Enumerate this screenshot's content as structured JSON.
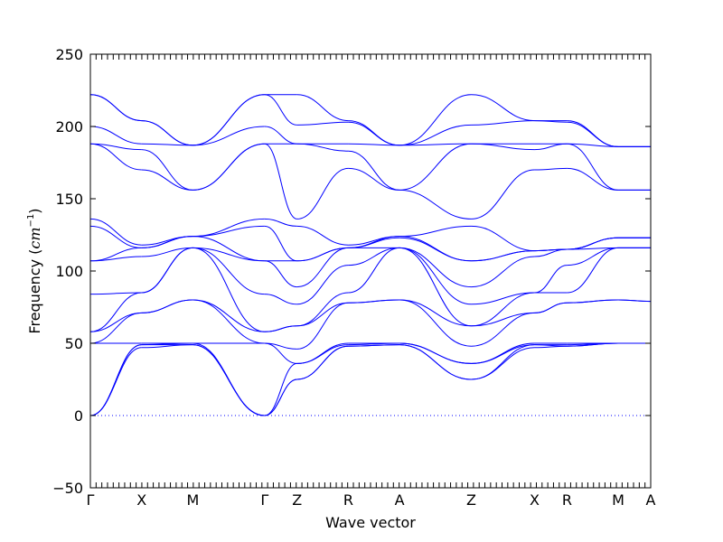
{
  "chart_data": {
    "type": "line",
    "title": "",
    "xlabel": "Wave vector",
    "ylabel": "Frequency (cm⁻¹)",
    "ylabel_main": "Frequency (",
    "ylabel_unit": "cm",
    "ylabel_exp": "−1",
    "ylabel_close": ")",
    "ylim": [
      -50,
      250
    ],
    "yticks": [
      -50,
      0,
      50,
      100,
      150,
      200,
      250
    ],
    "grid": false,
    "legend": "none",
    "zero_line": {
      "y": 0,
      "style": "dotted",
      "color": "#0000ff"
    },
    "line_color": "#0000ff",
    "xlim": [
      0,
      15.5
    ],
    "high_symmetry_points": [
      {
        "label": "Γ",
        "x": 0.0
      },
      {
        "label": "X",
        "x": 1.5
      },
      {
        "label": "M",
        "x": 3.0
      },
      {
        "label": "Γ",
        "x": 5.1
      },
      {
        "label": "Z",
        "x": 6.05
      },
      {
        "label": "R",
        "x": 7.55
      },
      {
        "label": "A",
        "x": 9.05
      },
      {
        "label": "Z",
        "x": 11.15
      },
      {
        "label": "X",
        "x": 13.0
      },
      {
        "label": "R",
        "x": 13.95
      },
      {
        "label": "M",
        "x": 15.45
      },
      {
        "label": "A",
        "x": 16.4
      }
    ],
    "segments": [
      {
        "from": "Γ",
        "to": "X",
        "x0": 0.0,
        "x1": 1.5,
        "start": [
          0,
          0,
          0,
          50,
          50,
          58,
          58,
          84,
          107,
          107,
          131,
          136,
          188,
          188,
          200,
          222,
          222
        ],
        "end": [
          47,
          49,
          49,
          50,
          71,
          71,
          85,
          85,
          110,
          116,
          116,
          118,
          170,
          184,
          188,
          204,
          204
        ]
      },
      {
        "from": "X",
        "to": "M",
        "x0": 1.5,
        "x1": 3.0,
        "start": [
          47,
          49,
          49,
          50,
          71,
          71,
          85,
          85,
          110,
          116,
          116,
          118,
          170,
          184,
          188,
          204,
          204
        ],
        "end": [
          49,
          49,
          50,
          50,
          80,
          80,
          116,
          116,
          116,
          124,
          124,
          124,
          156,
          156,
          187,
          187,
          187
        ]
      },
      {
        "from": "M",
        "to": "Γ",
        "x0": 3.0,
        "x1": 5.1,
        "start": [
          49,
          49,
          50,
          50,
          80,
          80,
          116,
          116,
          116,
          124,
          124,
          124,
          156,
          156,
          187,
          187,
          187
        ],
        "end": [
          0,
          0,
          0,
          50,
          50,
          58,
          58,
          84,
          107,
          107,
          131,
          136,
          188,
          188,
          200,
          222,
          222
        ]
      },
      {
        "from": "Γ",
        "to": "Z",
        "x0": 5.1,
        "x1": 6.05,
        "start": [
          0,
          0,
          0,
          50,
          50,
          58,
          58,
          84,
          107,
          107,
          131,
          136,
          188,
          188,
          200,
          222,
          222
        ],
        "end": [
          25,
          25,
          36,
          36,
          46,
          62,
          62,
          77,
          89,
          107,
          107,
          131,
          136,
          188,
          188,
          201,
          222
        ]
      },
      {
        "from": "Z",
        "to": "R",
        "x0": 6.05,
        "x1": 7.55,
        "start": [
          25,
          25,
          36,
          36,
          46,
          62,
          62,
          77,
          89,
          107,
          107,
          131,
          136,
          188,
          188,
          201,
          222
        ],
        "end": [
          48,
          48,
          49,
          50,
          78,
          78,
          85,
          104,
          116,
          116,
          116,
          118,
          171,
          183,
          188,
          203,
          204
        ]
      },
      {
        "from": "R",
        "to": "A",
        "x0": 7.55,
        "x1": 9.05,
        "start": [
          48,
          48,
          49,
          50,
          78,
          78,
          85,
          104,
          116,
          116,
          116,
          118,
          171,
          183,
          188,
          203,
          204
        ],
        "end": [
          49,
          49,
          50,
          50,
          80,
          80,
          116,
          116,
          116,
          123,
          124,
          124,
          156,
          156,
          187,
          187,
          187
        ]
      },
      {
        "from": "A",
        "to": "Z",
        "x0": 9.05,
        "x1": 11.15,
        "start": [
          49,
          49,
          50,
          50,
          80,
          80,
          116,
          116,
          116,
          123,
          124,
          124,
          156,
          156,
          187,
          187,
          187
        ],
        "end": [
          25,
          25,
          36,
          36,
          48,
          62,
          62,
          77,
          89,
          107,
          107,
          131,
          136,
          188,
          188,
          201,
          222
        ]
      },
      {
        "from": "Z",
        "to": "X",
        "x0": 11.15,
        "x1": 13.0,
        "start": [
          25,
          25,
          36,
          36,
          48,
          62,
          62,
          77,
          89,
          107,
          107,
          131,
          136,
          188,
          188,
          201,
          222
        ],
        "end": [
          47,
          49,
          49,
          50,
          71,
          71,
          85,
          85,
          110,
          114,
          114,
          114,
          170,
          184,
          188,
          204,
          204
        ]
      },
      {
        "from": "X",
        "to": "R",
        "x0": 13.0,
        "x1": 13.95,
        "start": [
          47,
          49,
          49,
          50,
          71,
          71,
          85,
          85,
          110,
          114,
          114,
          114,
          170,
          184,
          188,
          204,
          204
        ],
        "end": [
          48,
          48,
          49,
          50,
          78,
          78,
          85,
          104,
          115,
          115,
          115,
          115,
          171,
          188,
          188,
          203,
          204
        ]
      },
      {
        "from": "R",
        "to": "M",
        "x0": 13.95,
        "x1": 15.45,
        "start": [
          48,
          48,
          49,
          50,
          78,
          78,
          85,
          104,
          115,
          115,
          115,
          115,
          171,
          188,
          188,
          203,
          204
        ],
        "end": [
          50,
          50,
          50,
          50,
          80,
          80,
          116,
          116,
          116,
          123,
          123,
          123,
          156,
          156,
          186,
          186,
          186
        ]
      },
      {
        "from": "M",
        "to": "A",
        "x0": 15.45,
        "x1": 16.4,
        "start": [
          50,
          50,
          50,
          50,
          80,
          80,
          116,
          116,
          116,
          123,
          123,
          123,
          156,
          156,
          186,
          186,
          186
        ],
        "end": [
          50,
          50,
          50,
          50,
          79,
          79,
          116,
          116,
          116,
          123,
          123,
          123,
          156,
          156,
          186,
          186,
          186
        ]
      }
    ]
  }
}
